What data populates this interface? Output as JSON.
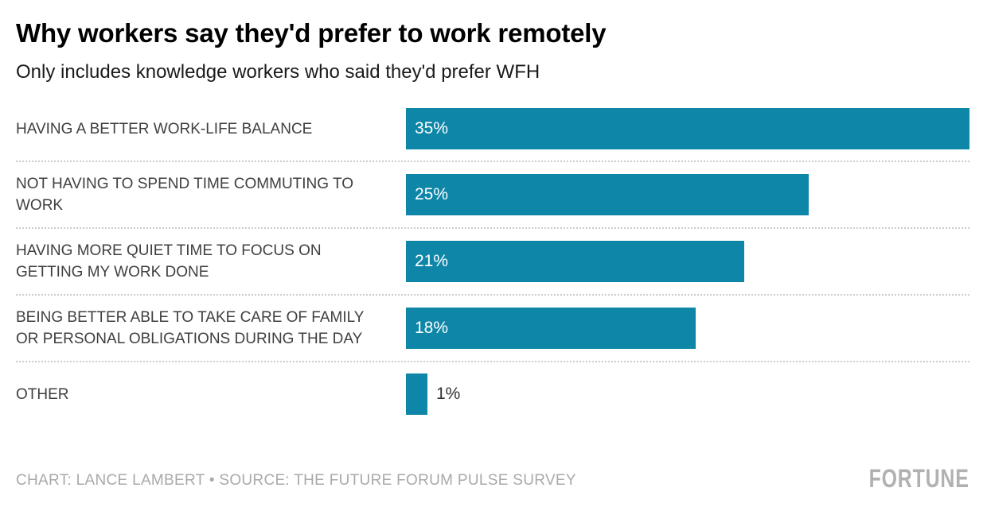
{
  "header": {
    "title": "Why workers say they'd prefer to work remotely",
    "subtitle": "Only includes knowledge workers who said they'd prefer WFH"
  },
  "chart_data": {
    "type": "bar",
    "orientation": "horizontal",
    "title": "Why workers say they'd prefer to work remotely",
    "subtitle": "Only includes knowledge workers who said they'd prefer WFH",
    "categories": [
      "HAVING A BETTER WORK-LIFE BALANCE",
      "NOT HAVING TO SPEND TIME COMMUTING TO WORK",
      "HAVING MORE QUIET TIME TO FOCUS ON GETTING MY WORK DONE",
      "BEING BETTER ABLE TO TAKE CARE OF FAMILY OR PERSONAL OBLIGATIONS DURING THE DAY",
      "OTHER"
    ],
    "values": [
      35,
      25,
      21,
      18,
      1
    ],
    "value_labels": [
      "35%",
      "25%",
      "21%",
      "18%",
      "1%"
    ],
    "value_label_placement": [
      "inside",
      "inside",
      "inside",
      "inside",
      "outside"
    ],
    "xlim": [
      0,
      35
    ],
    "grid": false,
    "legend": false,
    "row_separator_style": "dotted"
  },
  "footer": {
    "credit": "CHART: LANCE LAMBERT • SOURCE: THE FUTURE FORUM PULSE SURVEY",
    "brand": "FORTUNE"
  },
  "colors": {
    "bar": "#0e86a8",
    "value_inside_text": "#ffffff",
    "value_outside_text": "#333333",
    "label_text": "#3f3f3f",
    "title_text": "#000000",
    "subtitle_text": "#1a1a1a",
    "separator": "#cccccc",
    "credit_text": "#a9a9a9",
    "brand_text": "#b1b1b1",
    "background": "#ffffff"
  }
}
